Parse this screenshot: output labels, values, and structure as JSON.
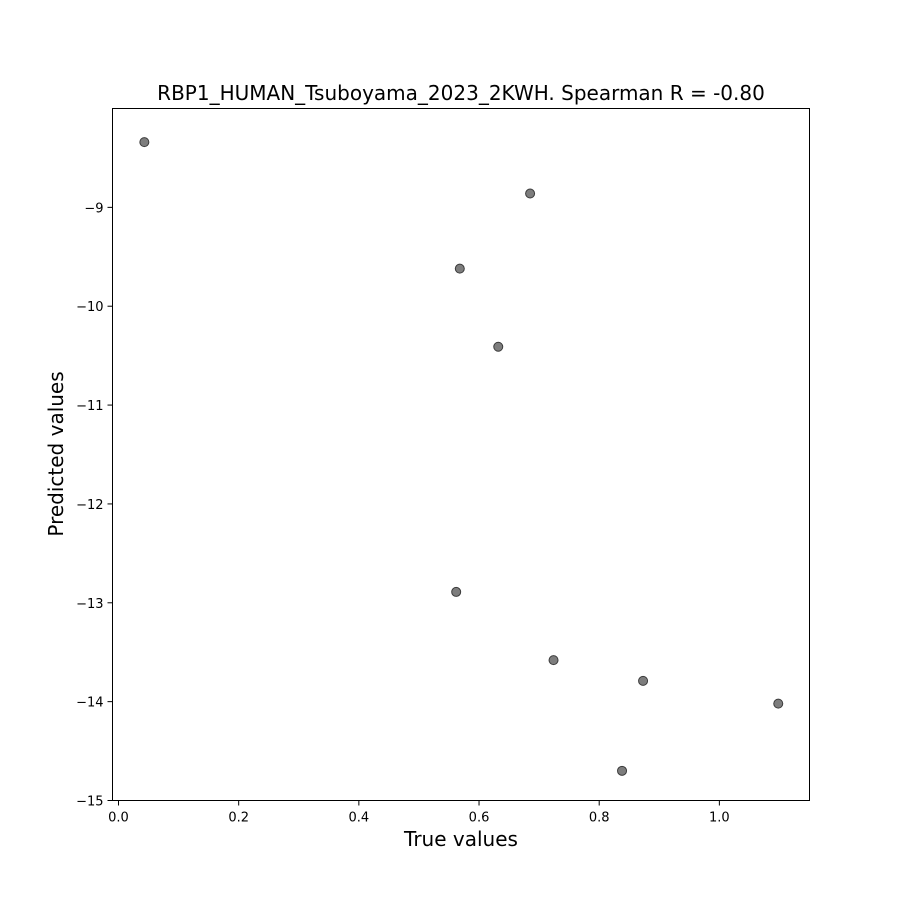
{
  "chart_data": {
    "type": "scatter",
    "title": "RBP1_HUMAN_Tsuboyama_2023_2KWH. Spearman R = -0.80",
    "xlabel": "True values",
    "ylabel": "Predicted values",
    "xlim": [
      -0.01,
      1.15
    ],
    "ylim": [
      -15.0,
      -8.0
    ],
    "x_ticks": [
      0.0,
      0.2,
      0.4,
      0.6,
      0.8,
      1.0
    ],
    "x_tick_labels": [
      "0.0",
      "0.2",
      "0.4",
      "0.6",
      "0.8",
      "1.0"
    ],
    "y_ticks": [
      -15,
      -14,
      -13,
      -12,
      -11,
      -10,
      -9
    ],
    "y_tick_labels": [
      "−15",
      "−14",
      "−13",
      "−12",
      "−11",
      "−10",
      "−9"
    ],
    "grid": false,
    "legend": "none",
    "point_color": "#666666",
    "points": [
      {
        "x": 0.043,
        "y": -8.34
      },
      {
        "x": 0.685,
        "y": -8.86
      },
      {
        "x": 0.568,
        "y": -9.62
      },
      {
        "x": 0.632,
        "y": -10.41
      },
      {
        "x": 0.562,
        "y": -12.89
      },
      {
        "x": 0.724,
        "y": -13.58
      },
      {
        "x": 0.873,
        "y": -13.79
      },
      {
        "x": 1.098,
        "y": -14.02
      },
      {
        "x": 0.838,
        "y": -14.7
      }
    ]
  }
}
